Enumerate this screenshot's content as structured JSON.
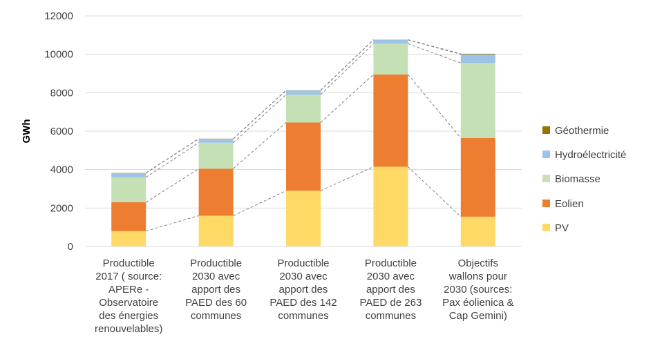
{
  "chart_data": {
    "type": "bar",
    "stacked": true,
    "ylabel": "GWh",
    "ylim": [
      0,
      12000
    ],
    "yticks": [
      0,
      2000,
      4000,
      6000,
      8000,
      10000,
      12000
    ],
    "grid": true,
    "legend_position": "right",
    "series_connectors": true,
    "categories": [
      [
        "Productible",
        "2017 ( source:",
        "APERe -",
        "Observatoire",
        "des énergies",
        "renouvelables)"
      ],
      [
        "Productible",
        "2030 avec",
        "apport des",
        "PAED des 60",
        "communes"
      ],
      [
        "Productible",
        "2030 avec",
        "apport des",
        "PAED des 142",
        "communes"
      ],
      [
        "Productible",
        "2030 avec",
        "apport des",
        "PAED de 263",
        "communes"
      ],
      [
        "Objectifs",
        "wallons pour",
        "2030 (sources:",
        "Pax éolienica &",
        "Cap Gemini)"
      ]
    ],
    "series": [
      {
        "name": "PV",
        "color": "#FFD966",
        "values": [
          800,
          1600,
          2900,
          4150,
          1550
        ]
      },
      {
        "name": "Eolien",
        "color": "#ED7D31",
        "values": [
          1500,
          2450,
          3550,
          4800,
          4100
        ]
      },
      {
        "name": "Biomasse",
        "color": "#C5E0B4",
        "values": [
          1300,
          1350,
          1450,
          1600,
          3900
        ]
      },
      {
        "name": "Hydroélectricité",
        "color": "#9DC3E6",
        "values": [
          220,
          200,
          220,
          200,
          450
        ]
      },
      {
        "name": "Géothermie",
        "color": "#997300",
        "values": [
          10,
          10,
          10,
          10,
          30
        ]
      }
    ]
  }
}
